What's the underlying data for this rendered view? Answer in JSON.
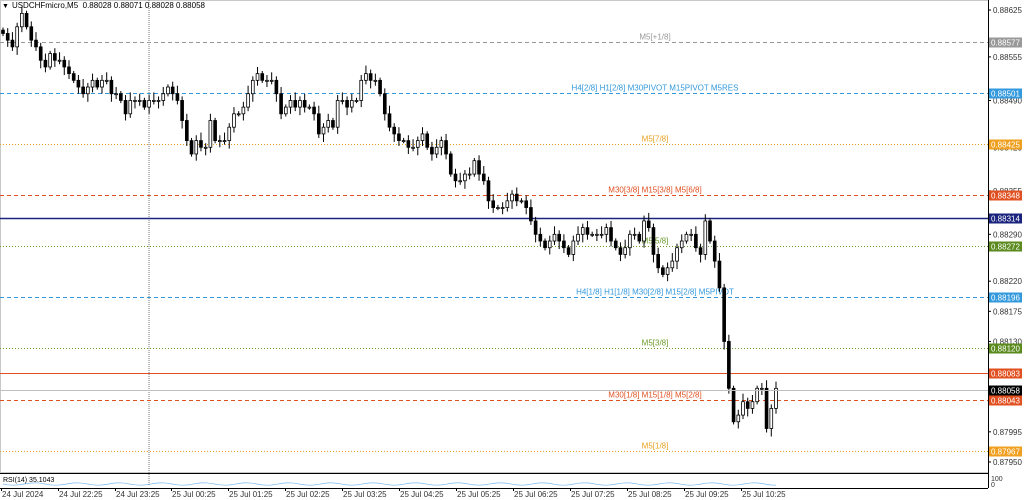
{
  "window": {
    "symbol_timeframe": "USDCHFmicro,M5",
    "ohlc_text": "0.88028 0.88071 0.88028 0.88058",
    "dropdown_icon": "triangle-down-icon"
  },
  "price_axis": {
    "ticks": [
      "0.88625",
      "0.88555",
      "0.88490",
      "0.88420",
      "0.88355",
      "0.88290",
      "0.88220",
      "0.88175",
      "0.88130",
      "0.88060",
      "0.87995",
      "0.87950"
    ],
    "current_price": "0.88058",
    "current_price_color": "#000000"
  },
  "time_axis": {
    "labels": [
      "24 Jul 2024",
      "24 Jul 22:25",
      "24 Jul 23:25",
      "25 Jul 00:25",
      "25 Jul 01:25",
      "25 Jul 02:25",
      "25 Jul 03:25",
      "25 Jul 04:25",
      "25 Jul 05:25",
      "25 Jul 06:25",
      "25 Jul 07:25",
      "25 Jul 08:25",
      "25 Jul 09:25",
      "25 Jul 10:25"
    ]
  },
  "levels": [
    {
      "price": "0.88577",
      "text": "M5[+1/8]",
      "color": "#999999",
      "badge": "#999999",
      "style": "dashed"
    },
    {
      "price": "0.88501",
      "text": "H4[2/8] H1[2/8] M30PIVOT M15PIVOT M5RES",
      "color": "#3399dd",
      "badge": "#3399dd",
      "style": "dashed"
    },
    {
      "price": "0.88425",
      "text": "M5[7/8]",
      "color": "#e8a020",
      "badge": "#f0a020",
      "style": "dotted"
    },
    {
      "price": "0.88348",
      "text": "M30[3/8] M15[3/8] M5[6/8]",
      "color": "#e05020",
      "badge": "#e05020",
      "style": "dashed"
    },
    {
      "price": "0.88314",
      "text": "",
      "color": "#1a237e",
      "badge": "#1a237e",
      "style": "solid"
    },
    {
      "price": "0.88272",
      "text": "M5[5/8]",
      "color": "#6a9a2a",
      "badge": "#5b8a1e",
      "style": "dotted"
    },
    {
      "price": "0.88196",
      "text": "H4[1/8] H1[1/8] M30[2/8] M15[2/8] M5PIVOT",
      "color": "#3399dd",
      "badge": "#3399dd",
      "style": "dashed"
    },
    {
      "price": "0.88120",
      "text": "M5[3/8]",
      "color": "#6a9a2a",
      "badge": "#5b8a1e",
      "style": "dotted"
    },
    {
      "price": "0.88083",
      "text": "",
      "color": "#e05020",
      "badge": "#e05020",
      "style": "solid"
    },
    {
      "price": "0.88043",
      "text": "M30[1/8] M15[1/8] M5[2/8]",
      "color": "#e05020",
      "badge": "#e05020",
      "style": "dashed"
    },
    {
      "price": "0.87967",
      "text": "M5[1/8]",
      "color": "#e8a020",
      "badge": "#f0a020",
      "style": "dotted"
    }
  ],
  "indicator": {
    "label": "RSI(14) 35.1043",
    "scale_top": "100",
    "scale_bottom": "0"
  },
  "chart_data": {
    "type": "candlestick",
    "ylim": [
      0.87935,
      0.8864
    ],
    "closes": [
      0.8859,
      0.8858,
      0.8857,
      0.886,
      0.8862,
      0.886,
      0.8858,
      0.8857,
      0.8855,
      0.8854,
      0.8856,
      0.8855,
      0.8855,
      0.8854,
      0.8853,
      0.8852,
      0.8851,
      0.885,
      0.8851,
      0.8852,
      0.8851,
      0.8852,
      0.8852,
      0.885,
      0.885,
      0.8849,
      0.8847,
      0.8849,
      0.8849,
      0.8849,
      0.8848,
      0.8849,
      0.8849,
      0.8849,
      0.885,
      0.8851,
      0.885,
      0.8849,
      0.8846,
      0.8843,
      0.8841,
      0.8843,
      0.8842,
      0.8842,
      0.8846,
      0.8843,
      0.8843,
      0.8843,
      0.8845,
      0.8847,
      0.8847,
      0.8848,
      0.885,
      0.8852,
      0.8853,
      0.8852,
      0.8852,
      0.8852,
      0.885,
      0.8847,
      0.8848,
      0.8849,
      0.8848,
      0.8849,
      0.8848,
      0.8848,
      0.8847,
      0.8844,
      0.8845,
      0.8846,
      0.8845,
      0.8849,
      0.8849,
      0.8848,
      0.8849,
      0.8849,
      0.8852,
      0.8853,
      0.8852,
      0.8852,
      0.885,
      0.8847,
      0.8845,
      0.8844,
      0.8843,
      0.8843,
      0.8842,
      0.8842,
      0.8843,
      0.8844,
      0.8842,
      0.8841,
      0.8842,
      0.8843,
      0.8841,
      0.8838,
      0.8837,
      0.8837,
      0.8838,
      0.8838,
      0.884,
      0.8838,
      0.8837,
      0.8834,
      0.8833,
      0.8833,
      0.8833,
      0.8834,
      0.8835,
      0.8834,
      0.8834,
      0.8833,
      0.8831,
      0.8829,
      0.8828,
      0.8827,
      0.8828,
      0.8829,
      0.8828,
      0.8827,
      0.8826,
      0.8828,
      0.8829,
      0.883,
      0.8829,
      0.8829,
      0.8829,
      0.8829,
      0.883,
      0.8828,
      0.8827,
      0.8826,
      0.8827,
      0.8829,
      0.8829,
      0.8828,
      0.8831,
      0.883,
      0.8826,
      0.8824,
      0.8823,
      0.8824,
      0.8825,
      0.8827,
      0.8828,
      0.8829,
      0.8829,
      0.8827,
      0.8826,
      0.8831,
      0.8828,
      0.8825,
      0.8821,
      0.8813,
      0.8806,
      0.8801,
      0.8802,
      0.8804,
      0.8803,
      0.8804,
      0.8806,
      0.8806,
      0.88,
      0.8803,
      0.8806
    ],
    "ohlc": {
      "open": 0.88028,
      "high": 0.88071,
      "low": 0.88028,
      "close": 0.88058
    }
  }
}
